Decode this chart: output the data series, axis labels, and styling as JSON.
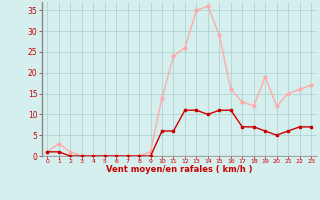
{
  "x": [
    0,
    1,
    2,
    3,
    4,
    5,
    6,
    7,
    8,
    9,
    10,
    11,
    12,
    13,
    14,
    15,
    16,
    17,
    18,
    19,
    20,
    21,
    22,
    23
  ],
  "vent_moyen": [
    1,
    1,
    0,
    0,
    0,
    0,
    0,
    0,
    0,
    0,
    6,
    6,
    11,
    11,
    10,
    11,
    11,
    7,
    7,
    6,
    5,
    6,
    7,
    7
  ],
  "en_rafales": [
    1,
    3,
    1,
    0,
    0,
    0,
    0,
    0,
    0,
    1,
    14,
    24,
    26,
    35,
    36,
    29,
    16,
    13,
    12,
    19,
    12,
    15,
    16,
    17
  ],
  "line_color_moyen": "#cc0000",
  "line_color_rafales": "#ffaaaa",
  "marker_color_moyen": "#cc0000",
  "marker_color_rafales": "#ffaaaa",
  "bg_color": "#d5eeee",
  "grid_color": "#aacccc",
  "spine_color": "#888888",
  "xlabel": "Vent moyen/en rafales ( km/h )",
  "xlabel_color": "#cc0000",
  "tick_color": "#cc0000",
  "ylim": [
    0,
    37
  ],
  "yticks": [
    0,
    5,
    10,
    15,
    20,
    25,
    30,
    35
  ],
  "xlim": [
    -0.5,
    23.5
  ]
}
